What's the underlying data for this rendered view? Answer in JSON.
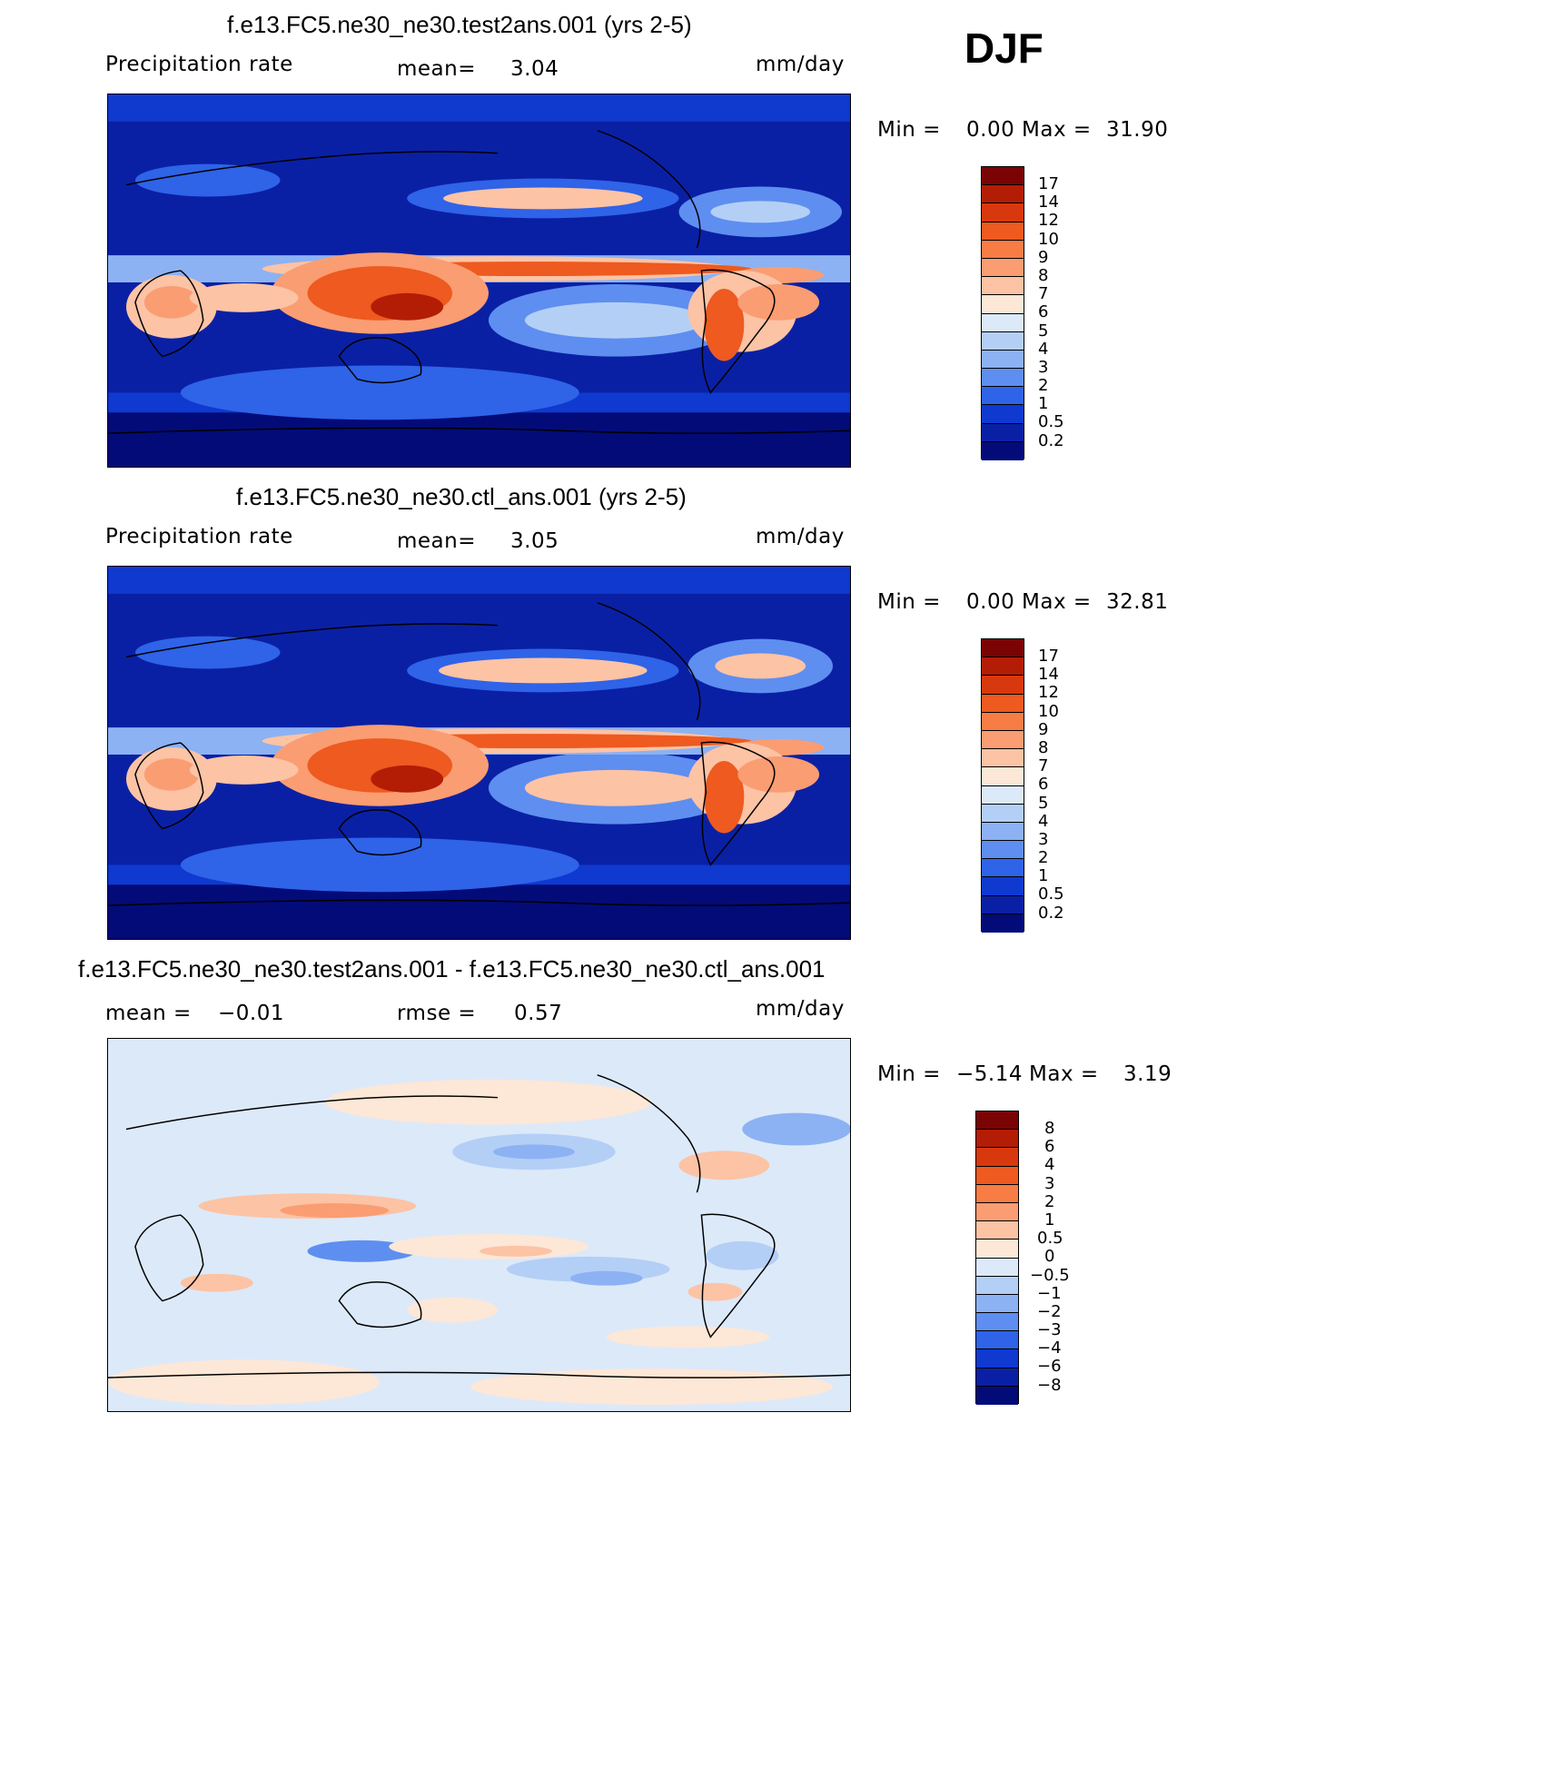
{
  "season": "DJF",
  "panels": [
    {
      "title": "f.e13.FC5.ne30_ne30.test2ans.001 (yrs 2-5)",
      "left_label": "Precipitation  rate",
      "mid_label": "mean=",
      "mid_value": "3.04",
      "units": "mm/day",
      "min_label": "Min  =",
      "min_value": "0.00",
      "max_label": "Max  =",
      "max_value": "31.90",
      "colorbar_labels": [
        "17",
        "14",
        "12",
        "10",
        "9",
        "8",
        "7",
        "6",
        "5",
        "4",
        "3",
        "2",
        "1",
        "0.5",
        "0.2"
      ]
    },
    {
      "title": "f.e13.FC5.ne30_ne30.ctl_ans.001 (yrs 2-5)",
      "left_label": "Precipitation  rate",
      "mid_label": "mean=",
      "mid_value": "3.05",
      "units": "mm/day",
      "min_label": "Min  =",
      "min_value": "0.00",
      "max_label": "Max  =",
      "max_value": "32.81",
      "colorbar_labels": [
        "17",
        "14",
        "12",
        "10",
        "9",
        "8",
        "7",
        "6",
        "5",
        "4",
        "3",
        "2",
        "1",
        "0.5",
        "0.2"
      ]
    },
    {
      "title": "f.e13.FC5.ne30_ne30.test2ans.001 - f.e13.FC5.ne30_ne30.ctl_ans.001",
      "left_label": "mean  =",
      "left_value": "−0.01",
      "mid_label": "rmse  =",
      "mid_value": "0.57",
      "units": "mm/day",
      "min_label": "Min  =",
      "min_value": "−5.14",
      "max_label": "Max  =",
      "max_value": "3.19",
      "colorbar_labels": [
        "8",
        "6",
        "4",
        "3",
        "2",
        "1",
        "0.5",
        "0",
        "−0.5",
        "−1",
        "−2",
        "−3",
        "−4",
        "−6",
        "−8"
      ]
    }
  ],
  "colors": {
    "precip_scale": [
      "#7a0403",
      "#b31d06",
      "#d8380d",
      "#ee5a1f",
      "#f87d45",
      "#fa9d72",
      "#fcc3a5",
      "#fde7d6",
      "#dce9f9",
      "#b4cff6",
      "#8cb2f3",
      "#5e8ef0",
      "#2f63e8",
      "#0f39cf",
      "#0a20a4",
      "#030b78"
    ],
    "diff_scale": [
      "#7a0403",
      "#b31d06",
      "#d8380d",
      "#ee5a1f",
      "#f87d45",
      "#fa9d72",
      "#fcc3a5",
      "#fde7d6",
      "#dce9f9",
      "#b4cff6",
      "#8cb2f3",
      "#5e8ef0",
      "#2f63e8",
      "#0f39cf",
      "#0a20a4",
      "#030b78"
    ]
  }
}
